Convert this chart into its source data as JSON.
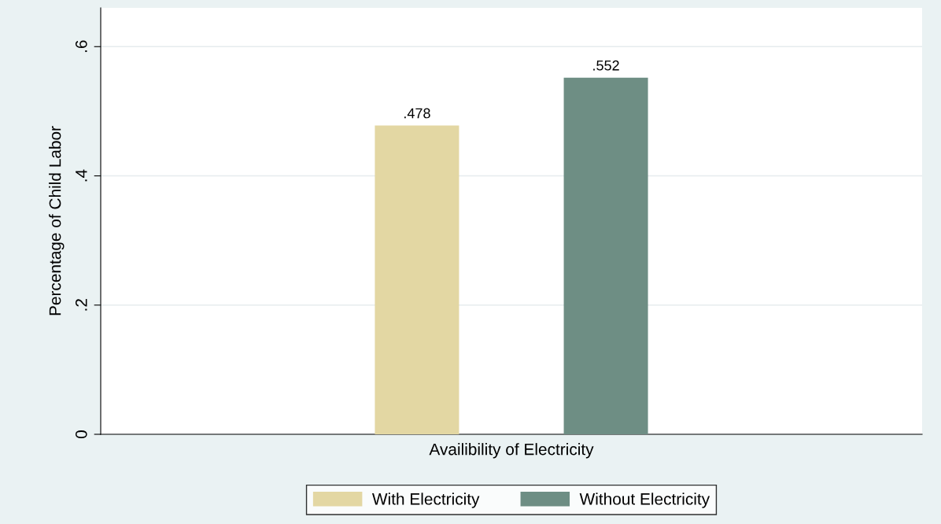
{
  "chart_data": {
    "type": "bar",
    "xlabel": "Availibility of Electricity",
    "ylabel": "Percentage of Child Labor",
    "categories": [
      null
    ],
    "series": [
      {
        "name": "With Electricity",
        "color": "#e3d7a3",
        "values": [
          0.478
        ],
        "value_labels": [
          ".478"
        ]
      },
      {
        "name": "Without Electricity",
        "color": "#6e8e84",
        "values": [
          0.552
        ],
        "value_labels": [
          ".552"
        ]
      }
    ],
    "ylim": [
      0,
      0.66
    ],
    "yticks": [
      0,
      {
        "value": 0.2,
        "label": ".2"
      },
      {
        "value": 0.4,
        "label": ".4"
      },
      {
        "value": 0.6,
        "label": ".6"
      }
    ],
    "grid": "y",
    "legend": "bottom",
    "tick_labels": "y"
  }
}
